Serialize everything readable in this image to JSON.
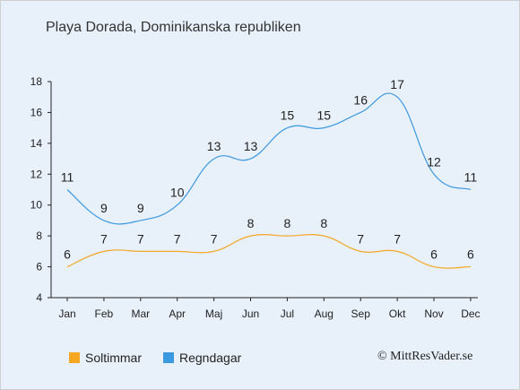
{
  "title": "Playa Dorada, Dominikanska republiken",
  "credit": "© MittResVader.se",
  "colors": {
    "sun": "#f5a623",
    "rain": "#3b99e0",
    "background": "#e8f0f9",
    "axis": "#222222"
  },
  "chart_data": {
    "type": "line",
    "categories": [
      "Jan",
      "Feb",
      "Mar",
      "Apr",
      "Maj",
      "Jun",
      "Jul",
      "Aug",
      "Sep",
      "Okt",
      "Nov",
      "Dec"
    ],
    "series": [
      {
        "name": "Soltimmar",
        "color": "#f5a623",
        "values": [
          6,
          7,
          7,
          7,
          7,
          8,
          8,
          8,
          7,
          7,
          6,
          6
        ]
      },
      {
        "name": "Regndagar",
        "color": "#3b99e0",
        "values": [
          11,
          9,
          9,
          10,
          13,
          13,
          15,
          15,
          16,
          17,
          12,
          11
        ]
      }
    ],
    "ylim": [
      4,
      18
    ],
    "yticks": [
      4,
      6,
      8,
      10,
      12,
      14,
      16,
      18
    ],
    "legend_position": "bottom-left",
    "grid": false
  }
}
